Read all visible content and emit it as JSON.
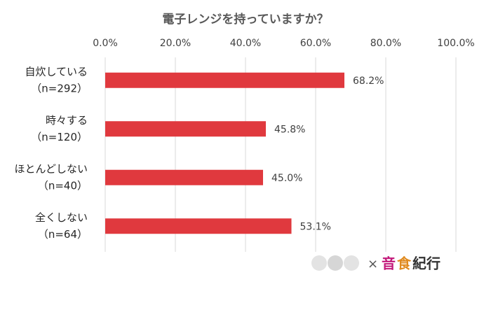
{
  "chart_data": {
    "type": "bar",
    "orientation": "horizontal",
    "title": "電子レンジを持っていますか？",
    "categories": [
      [
        "自炊している",
        "（n=292）"
      ],
      [
        "時々する",
        "（n=120）"
      ],
      [
        "ほとんどしない",
        "（n=40）"
      ],
      [
        "全くしない",
        "（n=64）"
      ]
    ],
    "values": [
      68.2,
      45.8,
      45.0,
      53.1
    ],
    "value_labels": [
      "68.2%",
      "45.8%",
      "45.0%",
      "53.1%"
    ],
    "color": "#e0393e",
    "xlim": [
      0,
      100
    ],
    "xticks": [
      {
        "value": 0,
        "label": "0.0%"
      },
      {
        "value": 20,
        "label": "20.0%"
      },
      {
        "value": 40,
        "label": "40.0%"
      },
      {
        "value": 60,
        "label": "60.0%"
      },
      {
        "value": 80,
        "label": "80.0%"
      },
      {
        "value": 100,
        "label": "100.0%"
      }
    ],
    "grid": true
  },
  "logo": {
    "cross": "×",
    "parts": [
      "音",
      "食",
      "紀行"
    ]
  }
}
